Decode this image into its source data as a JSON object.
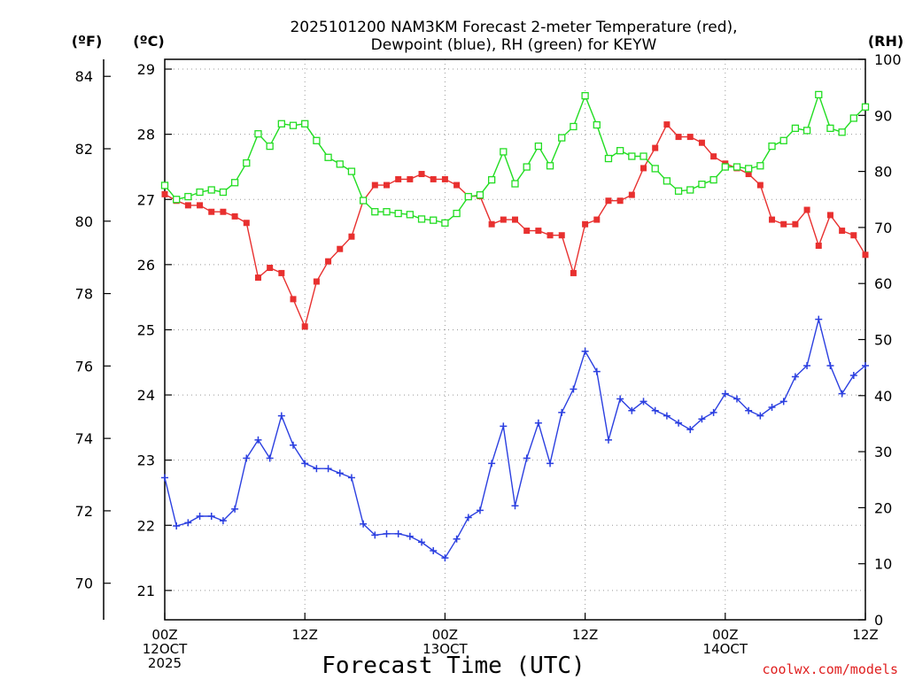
{
  "chart_data": {
    "type": "line",
    "title_line1": "2025101200 NAM3KM Forecast 2-meter Temperature (red),",
    "title_line2": "Dewpoint (blue), RH (green) for KEYW",
    "xlabel": "Forecast Time (UTC)",
    "credit": "coolwx.com/models",
    "x_ticks": [
      {
        "hour": 0,
        "line1": "00Z",
        "line2": "12OCT",
        "line3": "2025"
      },
      {
        "hour": 12,
        "line1": "12Z",
        "line2": "",
        "line3": ""
      },
      {
        "hour": 24,
        "line1": "00Z",
        "line2": "13OCT",
        "line3": ""
      },
      {
        "hour": 36,
        "line1": "12Z",
        "line2": "",
        "line3": ""
      },
      {
        "hour": 48,
        "line1": "00Z",
        "line2": "14OCT",
        "line3": ""
      },
      {
        "hour": 60,
        "line1": "12Z",
        "line2": "",
        "line3": ""
      }
    ],
    "xlim": [
      0,
      60
    ],
    "left_axis_c": {
      "unit_label": "(ºC)",
      "ylim": [
        20.55,
        29.15
      ],
      "ticks": [
        "21",
        "22",
        "23",
        "24",
        "25",
        "26",
        "27",
        "28",
        "29"
      ]
    },
    "left_axis_f": {
      "unit_label": "(ºF)",
      "ticks": [
        "70",
        "72",
        "74",
        "76",
        "78",
        "80",
        "82",
        "84"
      ]
    },
    "right_axis_rh": {
      "unit_label": "(RH)",
      "ylim": [
        0,
        100
      ],
      "ticks": [
        "0",
        "10",
        "20",
        "30",
        "40",
        "50",
        "60",
        "70",
        "80",
        "90",
        "100"
      ]
    },
    "series": [
      {
        "name": "2-meter Temperature",
        "unit": "C",
        "color": "#e8302f",
        "marker": "filled-square",
        "x": [
          0,
          1,
          2,
          3,
          4,
          5,
          6,
          7,
          8,
          9,
          10,
          11,
          12,
          13,
          14,
          15,
          16,
          17,
          18,
          19,
          20,
          21,
          22,
          23,
          24,
          25,
          26,
          27,
          28,
          29,
          30,
          31,
          32,
          33,
          34,
          35,
          36,
          37,
          38,
          39,
          40,
          41,
          42,
          43,
          44,
          45,
          46,
          47,
          48,
          49,
          50,
          51,
          52,
          53,
          54,
          55,
          56,
          57,
          58,
          59,
          60
        ],
        "values": [
          27.08,
          26.98,
          26.91,
          26.91,
          26.81,
          26.81,
          26.74,
          26.64,
          25.8,
          25.95,
          25.87,
          25.47,
          25.05,
          25.74,
          26.05,
          26.24,
          26.43,
          26.98,
          27.22,
          27.22,
          27.31,
          27.31,
          27.39,
          27.31,
          27.31,
          27.22,
          27.05,
          27.05,
          26.62,
          26.69,
          26.69,
          26.52,
          26.52,
          26.45,
          26.45,
          25.87,
          26.62,
          26.69,
          26.98,
          26.98,
          27.07,
          27.48,
          27.79,
          28.15,
          27.96,
          27.96,
          27.87,
          27.66,
          27.55,
          27.48,
          27.39,
          27.22,
          26.69,
          26.62,
          26.62,
          26.84,
          26.29,
          26.76,
          26.52,
          26.45,
          26.15
        ]
      },
      {
        "name": "Dewpoint",
        "unit": "C",
        "color": "#2b3fe0",
        "marker": "plus",
        "x": [
          0,
          1,
          2,
          3,
          4,
          5,
          6,
          7,
          8,
          9,
          10,
          11,
          12,
          13,
          14,
          15,
          16,
          17,
          18,
          19,
          20,
          21,
          22,
          23,
          24,
          25,
          26,
          27,
          28,
          29,
          30,
          31,
          32,
          33,
          34,
          35,
          36,
          37,
          38,
          39,
          40,
          41,
          42,
          43,
          44,
          45,
          46,
          47,
          48,
          49,
          50,
          51,
          52,
          53,
          54,
          55,
          56,
          57,
          58,
          59,
          60
        ],
        "values": [
          22.73,
          21.99,
          22.04,
          22.14,
          22.14,
          22.07,
          22.25,
          23.03,
          23.31,
          23.03,
          23.68,
          23.23,
          22.95,
          22.87,
          22.87,
          22.8,
          22.73,
          22.02,
          21.85,
          21.87,
          21.87,
          21.83,
          21.74,
          21.61,
          21.5,
          21.79,
          22.12,
          22.23,
          22.95,
          23.52,
          22.3,
          23.03,
          23.57,
          22.95,
          23.73,
          24.09,
          24.67,
          24.36,
          23.31,
          23.94,
          23.76,
          23.9,
          23.76,
          23.68,
          23.57,
          23.47,
          23.63,
          23.73,
          24.02,
          23.94,
          23.76,
          23.68,
          23.81,
          23.9,
          24.28,
          24.45,
          25.16,
          24.45,
          24.02,
          24.3,
          24.45
        ]
      },
      {
        "name": "RH",
        "unit": "%",
        "color": "#22dd22",
        "marker": "open-square",
        "x": [
          0,
          1,
          2,
          3,
          4,
          5,
          6,
          7,
          8,
          9,
          10,
          11,
          12,
          13,
          14,
          15,
          16,
          17,
          18,
          19,
          20,
          21,
          22,
          23,
          24,
          25,
          26,
          27,
          28,
          29,
          30,
          31,
          32,
          33,
          34,
          35,
          36,
          37,
          38,
          39,
          40,
          41,
          42,
          43,
          44,
          45,
          46,
          47,
          48,
          49,
          50,
          51,
          52,
          53,
          54,
          55,
          56,
          57,
          58,
          59,
          60
        ],
        "values": [
          77.5,
          75,
          75.5,
          76.3,
          76.7,
          76.3,
          78,
          81.5,
          86.7,
          84.5,
          88.5,
          88.2,
          88.5,
          85.5,
          82.5,
          81.3,
          80,
          74.8,
          72.8,
          72.8,
          72.5,
          72.3,
          71.5,
          71.3,
          70.8,
          72.5,
          75.5,
          75.8,
          78.5,
          83.5,
          77.8,
          80.8,
          84.5,
          81,
          86,
          88,
          93.5,
          88.3,
          82.3,
          83.7,
          82.7,
          82.7,
          80.5,
          78.3,
          76.5,
          76.7,
          77.7,
          78.5,
          80.8,
          80.8,
          80.5,
          81,
          84.5,
          85.5,
          87.7,
          87.3,
          93.7,
          87.7,
          87,
          89.5,
          91.5
        ]
      }
    ]
  }
}
